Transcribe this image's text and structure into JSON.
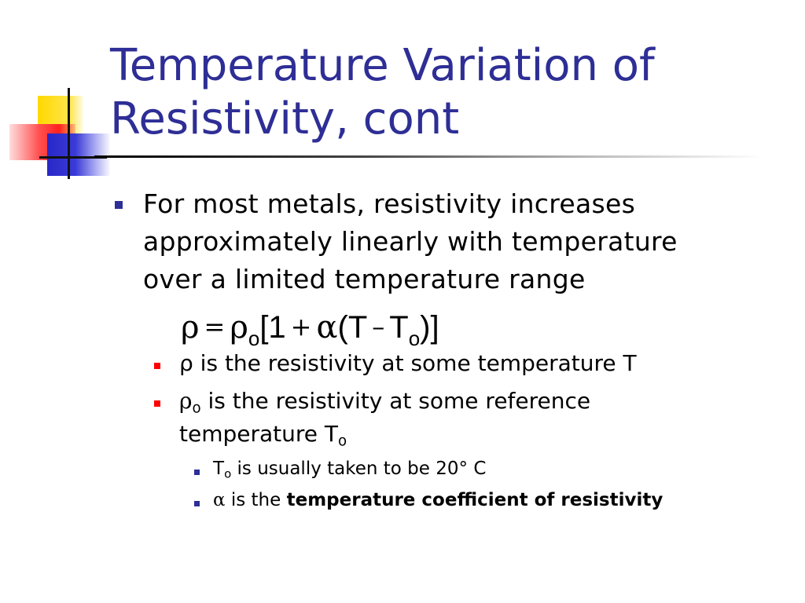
{
  "slide": {
    "title_line1": "Temperature Variation of",
    "title_line2": "Resistivity, cont",
    "title_color": "#2e2e96"
  },
  "bullet1": {
    "line1": "For most metals, resistivity increases",
    "line2": "approximately linearly with temperature",
    "line3": "over a limited temperature range"
  },
  "formula": {
    "rho": "ρ",
    "equals": "=",
    "rho0": "ρ",
    "rho0_sub": "o",
    "open": "[1",
    "plus": "+",
    "alpha": "α",
    "paren_T": "(T",
    "minus": "–",
    "T0": "T",
    "T0_sub": "o",
    "close": ")]"
  },
  "sub_bullets": [
    {
      "text": "ρ is the resistivity at some temperature T"
    },
    {
      "lead": "ρ",
      "lead_sub": "o",
      "text": " is the resistivity at some reference",
      "line2": "temperature T",
      "line2_sub": "o"
    }
  ],
  "sub_sub_bullets": [
    {
      "lead": "T",
      "lead_sub": "o",
      "text": " is usually taken to be 20° C"
    },
    {
      "alpha": "α",
      "text": " is the ",
      "bold": "temperature coefficient of resistivity"
    }
  ],
  "colors": {
    "level1_bullet": "#2e2e96",
    "level2_bullet": "#ff0000",
    "level3_bullet": "#2e2e96"
  }
}
